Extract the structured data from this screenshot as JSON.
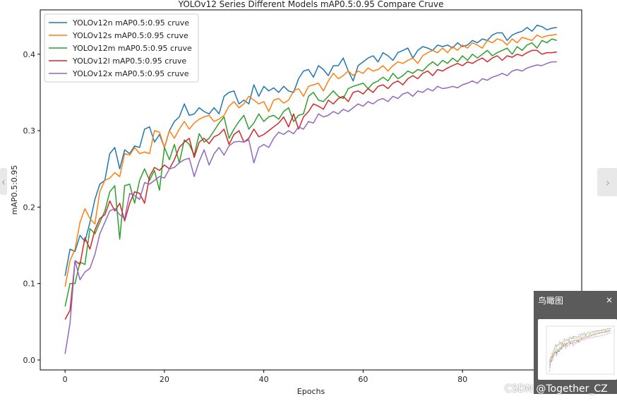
{
  "chart_data": {
    "type": "line",
    "title": "YOLOv12 Series Different Models mAP0.5:0.95 Compare Cruve",
    "xlabel": "Epochs",
    "ylabel": "mAP0.5:0.95",
    "xlim": [
      -5,
      104
    ],
    "ylim": [
      -0.013,
      0.458
    ],
    "xticks": [
      0,
      20,
      40,
      60,
      80
    ],
    "yticks": [
      0.0,
      0.1,
      0.2,
      0.3,
      0.4
    ],
    "xtick_labels": [
      "0",
      "20",
      "40",
      "60",
      "80"
    ],
    "ytick_labels": [
      "0.0",
      "0.1",
      "0.2",
      "0.3",
      "0.4"
    ],
    "legend_position": "top-left",
    "grid": false,
    "series": [
      {
        "name": "YOLOv12n mAP0.5:0.95 cruve",
        "color": "#1f77b4",
        "values": [
          0.11,
          0.145,
          0.142,
          0.163,
          0.155,
          0.18,
          0.21,
          0.23,
          0.235,
          0.27,
          0.278,
          0.25,
          0.275,
          0.27,
          0.28,
          0.278,
          0.302,
          0.305,
          0.285,
          0.295,
          0.278,
          0.3,
          0.312,
          0.318,
          0.335,
          0.32,
          0.322,
          0.33,
          0.325,
          0.322,
          0.33,
          0.322,
          0.345,
          0.35,
          0.352,
          0.335,
          0.34,
          0.335,
          0.36,
          0.345,
          0.358,
          0.352,
          0.356,
          0.35,
          0.358,
          0.352,
          0.35,
          0.368,
          0.378,
          0.38,
          0.37,
          0.385,
          0.38,
          0.372,
          0.385,
          0.385,
          0.395,
          0.378,
          0.365,
          0.385,
          0.39,
          0.395,
          0.398,
          0.39,
          0.402,
          0.398,
          0.392,
          0.402,
          0.405,
          0.408,
          0.395,
          0.405,
          0.41,
          0.408,
          0.405,
          0.412,
          0.41,
          0.412,
          0.408,
          0.415,
          0.41,
          0.412,
          0.418,
          0.415,
          0.42,
          0.418,
          0.425,
          0.428,
          0.428,
          0.418,
          0.425,
          0.428,
          0.43,
          0.435,
          0.43,
          0.438,
          0.436,
          0.432,
          0.434,
          0.435
        ],
        "_note": "values 0..99 approximated from plot"
      },
      {
        "name": "YOLOv12s mAP0.5:0.95 cruve",
        "color": "#ff7f0e",
        "values": [
          0.096,
          0.13,
          0.145,
          0.18,
          0.198,
          0.185,
          0.178,
          0.22,
          0.235,
          0.238,
          0.245,
          0.24,
          0.27,
          0.268,
          0.278,
          0.27,
          0.272,
          0.27,
          0.3,
          0.298,
          0.278,
          0.3,
          0.29,
          0.302,
          0.312,
          0.302,
          0.31,
          0.315,
          0.318,
          0.32,
          0.312,
          0.315,
          0.32,
          0.332,
          0.338,
          0.33,
          0.335,
          0.345,
          0.34,
          0.335,
          0.338,
          0.325,
          0.34,
          0.342,
          0.336,
          0.34,
          0.352,
          0.355,
          0.345,
          0.358,
          0.36,
          0.362,
          0.352,
          0.365,
          0.375,
          0.368,
          0.372,
          0.378,
          0.372,
          0.378,
          0.375,
          0.382,
          0.378,
          0.38,
          0.385,
          0.378,
          0.385,
          0.39,
          0.388,
          0.392,
          0.395,
          0.388,
          0.398,
          0.402,
          0.405,
          0.402,
          0.408,
          0.402,
          0.41,
          0.405,
          0.412,
          0.408,
          0.415,
          0.412,
          0.408,
          0.418,
          0.415,
          0.42,
          0.418,
          0.412,
          0.42,
          0.415,
          0.422,
          0.42,
          0.418,
          0.425,
          0.422,
          0.424,
          0.425,
          0.426
        ]
      },
      {
        "name": "YOLOv12m mAP0.5:0.95 cruve",
        "color": "#2ca02c",
        "values": [
          0.07,
          0.1,
          0.1,
          0.128,
          0.125,
          0.172,
          0.165,
          0.18,
          0.195,
          0.22,
          0.228,
          0.158,
          0.228,
          0.23,
          0.205,
          0.235,
          0.25,
          0.235,
          0.248,
          0.222,
          0.278,
          0.262,
          0.282,
          0.258,
          0.288,
          0.282,
          0.268,
          0.296,
          0.285,
          0.29,
          0.3,
          0.31,
          0.318,
          0.29,
          0.302,
          0.312,
          0.32,
          0.302,
          0.31,
          0.322,
          0.312,
          0.318,
          0.32,
          0.315,
          0.325,
          0.33,
          0.312,
          0.32,
          0.322,
          0.345,
          0.35,
          0.34,
          0.338,
          0.345,
          0.352,
          0.345,
          0.342,
          0.355,
          0.358,
          0.36,
          0.362,
          0.355,
          0.362,
          0.365,
          0.37,
          0.365,
          0.375,
          0.368,
          0.372,
          0.378,
          0.375,
          0.38,
          0.378,
          0.385,
          0.39,
          0.385,
          0.392,
          0.388,
          0.395,
          0.39,
          0.398,
          0.392,
          0.4,
          0.395,
          0.4,
          0.405,
          0.398,
          0.402,
          0.405,
          0.408,
          0.4,
          0.41,
          0.405,
          0.412,
          0.415,
          0.408,
          0.418,
          0.415,
          0.42,
          0.418
        ]
      },
      {
        "name": "YOLOv12l mAP0.5:0.95 cruve",
        "color": "#d62728",
        "values": [
          0.053,
          0.065,
          0.13,
          0.125,
          0.16,
          0.145,
          0.17,
          0.185,
          0.19,
          0.208,
          0.195,
          0.205,
          0.182,
          0.205,
          0.22,
          0.218,
          0.205,
          0.24,
          0.252,
          0.248,
          0.255,
          0.25,
          0.262,
          0.278,
          0.285,
          0.29,
          0.265,
          0.285,
          0.29,
          0.283,
          0.292,
          0.295,
          0.302,
          0.282,
          0.295,
          0.3,
          0.285,
          0.29,
          0.302,
          0.292,
          0.295,
          0.3,
          0.305,
          0.31,
          0.318,
          0.305,
          0.322,
          0.302,
          0.318,
          0.325,
          0.335,
          0.332,
          0.328,
          0.34,
          0.335,
          0.342,
          0.345,
          0.338,
          0.35,
          0.352,
          0.348,
          0.355,
          0.35,
          0.358,
          0.36,
          0.355,
          0.362,
          0.365,
          0.36,
          0.368,
          0.372,
          0.368,
          0.375,
          0.378,
          0.372,
          0.38,
          0.378,
          0.382,
          0.385,
          0.388,
          0.385,
          0.39,
          0.388,
          0.392,
          0.395,
          0.39,
          0.395,
          0.398,
          0.392,
          0.398,
          0.396,
          0.4,
          0.398,
          0.402,
          0.405,
          0.405,
          0.4,
          0.402,
          0.402,
          0.403
        ]
      },
      {
        "name": "YOLOv12x mAP0.5:0.95 cruve",
        "color": "#9467bd",
        "values": [
          0.008,
          0.048,
          0.13,
          0.105,
          0.115,
          0.12,
          0.138,
          0.165,
          0.18,
          0.195,
          0.198,
          0.19,
          0.185,
          0.218,
          0.215,
          0.21,
          0.232,
          0.23,
          0.235,
          0.24,
          0.238,
          0.25,
          0.252,
          0.258,
          0.262,
          0.264,
          0.24,
          0.26,
          0.275,
          0.255,
          0.27,
          0.278,
          0.268,
          0.28,
          0.285,
          0.286,
          0.285,
          0.288,
          0.258,
          0.278,
          0.282,
          0.278,
          0.29,
          0.298,
          0.295,
          0.3,
          0.296,
          0.305,
          0.302,
          0.312,
          0.31,
          0.322,
          0.318,
          0.32,
          0.325,
          0.322,
          0.328,
          0.325,
          0.33,
          0.335,
          0.332,
          0.338,
          0.335,
          0.34,
          0.342,
          0.338,
          0.345,
          0.342,
          0.348,
          0.35,
          0.345,
          0.352,
          0.35,
          0.355,
          0.352,
          0.358,
          0.355,
          0.356,
          0.358,
          0.356,
          0.36,
          0.362,
          0.365,
          0.362,
          0.368,
          0.366,
          0.37,
          0.372,
          0.375,
          0.372,
          0.378,
          0.38,
          0.378,
          0.382,
          0.384,
          0.386,
          0.385,
          0.388,
          0.39,
          0.39
        ]
      }
    ]
  },
  "overview": {
    "title": "鸟瞰图",
    "close_glyph": "×"
  },
  "watermark": "CSDN @Together_CZ",
  "nav": {
    "left_glyph": "‹",
    "right_glyph": "›"
  }
}
